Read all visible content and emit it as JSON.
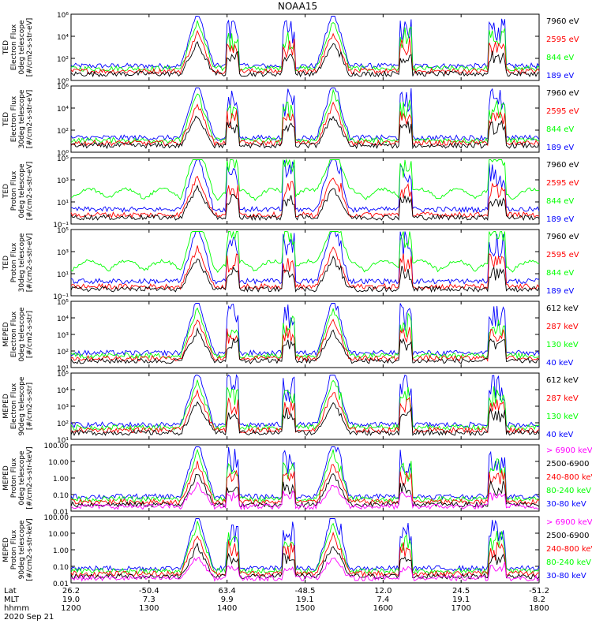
{
  "title": "NOAA15",
  "colors": {
    "black": "#000000",
    "red": "#ff0000",
    "green": "#00ff00",
    "blue": "#0000ff",
    "magenta": "#ff00ff"
  },
  "chart_data": [
    {
      "type": "line",
      "ylog": true,
      "ylim": [
        1,
        1000000
      ],
      "ylabel": [
        "TED",
        "Electron Flux",
        "0deg telescope",
        "[#/cm2-s-str-eV]"
      ],
      "yticks": [
        "10⁰",
        "10²",
        "10⁴",
        "10⁶"
      ],
      "legend": [
        {
          "label": "7960 eV",
          "color": "#000000"
        },
        {
          "label": "2595 eV",
          "color": "#ff0000"
        },
        {
          "label": "844 eV",
          "color": "#00ff00"
        },
        {
          "label": "189 eV",
          "color": "#0000ff"
        }
      ]
    },
    {
      "type": "line",
      "ylog": true,
      "ylim": [
        1,
        1000000
      ],
      "ylabel": [
        "TED",
        "Electron Flux",
        "30deg telescope",
        "[#/cm2-s-str-eV]"
      ],
      "yticks": [
        "10⁰",
        "10²",
        "10⁴",
        "10⁶"
      ],
      "legend": [
        {
          "label": "7960 eV",
          "color": "#000000"
        },
        {
          "label": "2595 eV",
          "color": "#ff0000"
        },
        {
          "label": "844 eV",
          "color": "#00ff00"
        },
        {
          "label": "189 eV",
          "color": "#0000ff"
        }
      ]
    },
    {
      "type": "line",
      "ylog": true,
      "ylim": [
        0.1,
        100000
      ],
      "ylabel": [
        "TED",
        "Proton Flux",
        "0deg telescope",
        "[#/cm2-s-str-eV]"
      ],
      "yticks": [
        "10⁻¹",
        "10¹",
        "10³",
        "10⁵"
      ],
      "legend": [
        {
          "label": "7960 eV",
          "color": "#000000"
        },
        {
          "label": "2595 eV",
          "color": "#ff0000"
        },
        {
          "label": "844 eV",
          "color": "#00ff00"
        },
        {
          "label": "189 eV",
          "color": "#0000ff"
        }
      ]
    },
    {
      "type": "line",
      "ylog": true,
      "ylim": [
        0.1,
        100000
      ],
      "ylabel": [
        "TED",
        "Proton Flux",
        "30deg telescope",
        "[#/cm2-s-str-eV]"
      ],
      "yticks": [
        "10⁻¹",
        "10¹",
        "10³",
        "10⁵"
      ],
      "legend": [
        {
          "label": "7960 eV",
          "color": "#000000"
        },
        {
          "label": "2595 eV",
          "color": "#ff0000"
        },
        {
          "label": "844 eV",
          "color": "#00ff00"
        },
        {
          "label": "189 eV",
          "color": "#0000ff"
        }
      ]
    },
    {
      "type": "line",
      "ylog": true,
      "ylim": [
        10,
        100000
      ],
      "ylabel": [
        "MEPED",
        "Electron Flux",
        "0deg telescope",
        "[#/cm2-s-str]"
      ],
      "yticks": [
        "10¹",
        "10²",
        "10³",
        "10⁴",
        "10⁵"
      ],
      "legend": [
        {
          "label": "612 keV",
          "color": "#000000"
        },
        {
          "label": "287 keV",
          "color": "#ff0000"
        },
        {
          "label": "130 keV",
          "color": "#00ff00"
        },
        {
          "label": "40 keV",
          "color": "#0000ff"
        }
      ]
    },
    {
      "type": "line",
      "ylog": true,
      "ylim": [
        10,
        100000
      ],
      "ylabel": [
        "MEPED",
        "Electron Flux",
        "90deg telescope",
        "[#/cm2-s-str]"
      ],
      "yticks": [
        "10¹",
        "10²",
        "10³",
        "10⁴",
        "10⁵"
      ],
      "legend": [
        {
          "label": "612 keV",
          "color": "#000000"
        },
        {
          "label": "287 keV",
          "color": "#ff0000"
        },
        {
          "label": "130 keV",
          "color": "#00ff00"
        },
        {
          "label": "40 keV",
          "color": "#0000ff"
        }
      ]
    },
    {
      "type": "line",
      "ylog": true,
      "ylim": [
        0.01,
        100
      ],
      "ylabel": [
        "MEPED",
        "Proton Flux",
        "0deg telescope",
        "[#/cm2-s-str-keV]"
      ],
      "yticks": [
        "0.01",
        "0.10",
        "1.00",
        "10.00",
        "100.00"
      ],
      "legend": [
        {
          "label": "> 6900 keV",
          "color": "#ff00ff"
        },
        {
          "label": "2500-6900",
          "color": "#000000"
        },
        {
          "label": "240-800 keV",
          "color": "#ff0000"
        },
        {
          "label": "80-240 keV",
          "color": "#00ff00"
        },
        {
          "label": "30-80 keV",
          "color": "#0000ff"
        }
      ]
    },
    {
      "type": "line",
      "ylog": true,
      "ylim": [
        0.01,
        100
      ],
      "ylabel": [
        "MEPED",
        "Proton Flux",
        "90deg telescope",
        "[#/cm2-s-str-keV]"
      ],
      "yticks": [
        "0.01",
        "0.10",
        "1.00",
        "10.00",
        "100.00"
      ],
      "legend": [
        {
          "label": "> 6900 keV",
          "color": "#ff00ff"
        },
        {
          "label": "2500-6900",
          "color": "#000000"
        },
        {
          "label": "240-800 keV",
          "color": "#ff0000"
        },
        {
          "label": "80-240 keV",
          "color": "#00ff00"
        },
        {
          "label": "30-80 keV",
          "color": "#0000ff"
        }
      ]
    }
  ],
  "xaxis": {
    "row_labels": [
      "Lat",
      "MLT",
      "hhmm"
    ],
    "lat": [
      "26.2",
      "-50.4",
      "63.4",
      "-48.5",
      "12.0",
      "24.5",
      "-51.2"
    ],
    "mlt": [
      "19.0",
      "7.3",
      "9.9",
      "19.1",
      "7.4",
      "19.1",
      "8.2"
    ],
    "hhmm": [
      "1200",
      "1300",
      "1400",
      "1500",
      "1600",
      "1700",
      "1800"
    ],
    "date": "2020 Sep 21"
  }
}
